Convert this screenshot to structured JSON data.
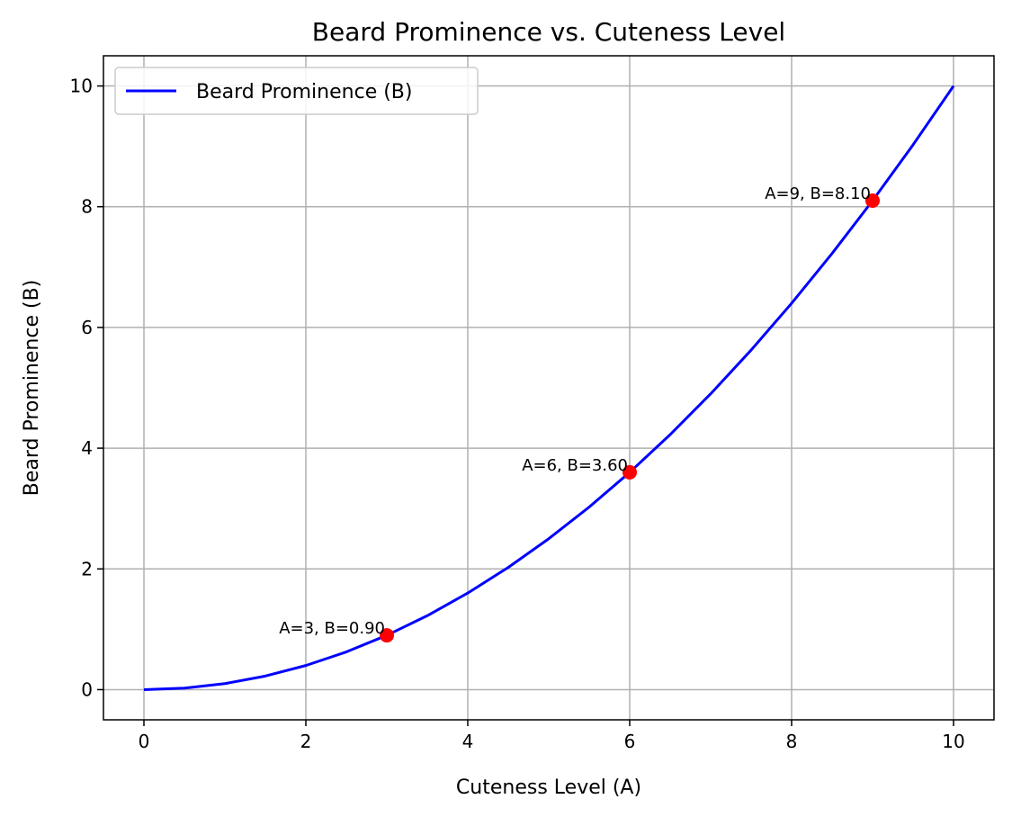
{
  "chart_data": {
    "type": "line",
    "title": "Beard Prominence vs. Cuteness Level",
    "xlabel": "Cuteness Level (A)",
    "ylabel": "Beard Prominence (B)",
    "xlim": [
      -0.5,
      10.5
    ],
    "ylim": [
      -0.5,
      10.5
    ],
    "xticks": [
      0,
      2,
      4,
      6,
      8,
      10
    ],
    "yticks": [
      0,
      2,
      4,
      6,
      8,
      10
    ],
    "grid": true,
    "legend_position": "top-left",
    "series": [
      {
        "name": "Beard Prominence (B)",
        "color": "#0000ff",
        "x": [
          0,
          0.5,
          1,
          1.5,
          2,
          2.5,
          3,
          3.5,
          4,
          4.5,
          5,
          5.5,
          6,
          6.5,
          7,
          7.5,
          8,
          8.5,
          9,
          9.5,
          10
        ],
        "y": [
          0,
          0.025,
          0.1,
          0.225,
          0.4,
          0.625,
          0.9,
          1.225,
          1.6,
          2.025,
          2.5,
          3.025,
          3.6,
          4.225,
          4.9,
          5.625,
          6.4,
          7.225,
          8.1,
          9.025,
          10
        ]
      }
    ],
    "points": [
      {
        "x": 3,
        "y": 0.9,
        "label": "A=3, B=0.90"
      },
      {
        "x": 6,
        "y": 3.6,
        "label": "A=6, B=3.60"
      },
      {
        "x": 9,
        "y": 8.1,
        "label": "A=9, B=8.10"
      }
    ],
    "point_color": "#ff0000"
  }
}
